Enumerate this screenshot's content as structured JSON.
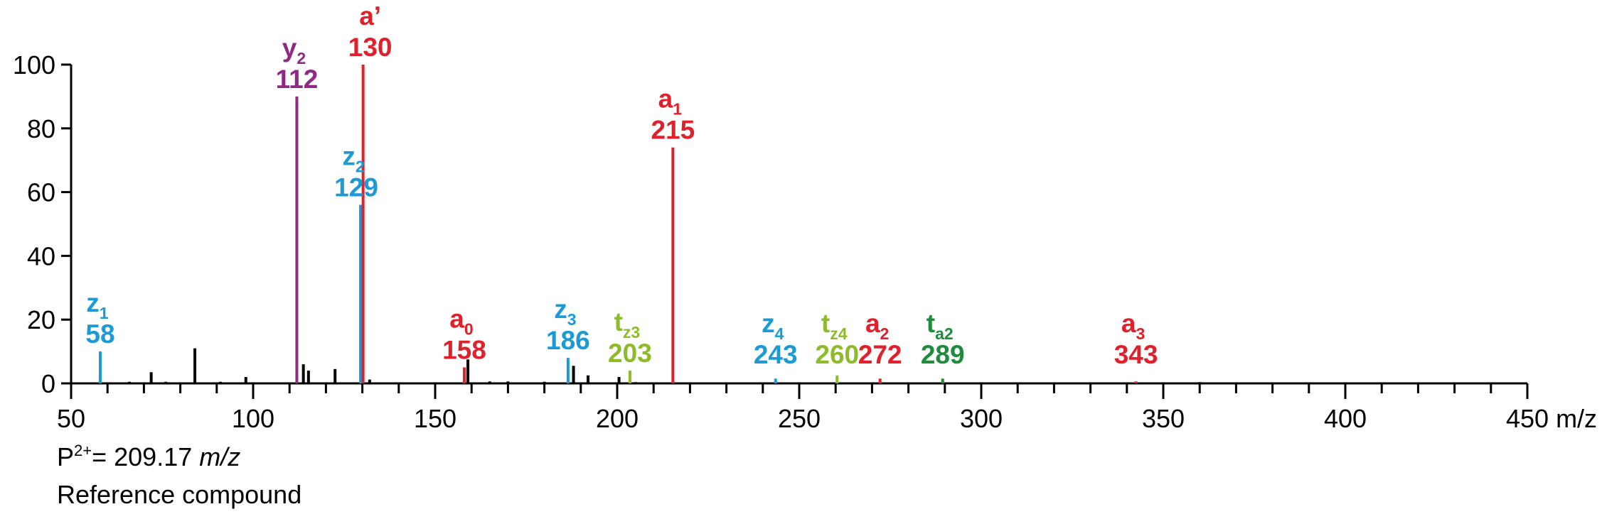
{
  "chart_data": {
    "type": "bar",
    "xlabel": "m/z",
    "ylabel": "",
    "xlim": [
      50,
      450
    ],
    "ylim": [
      0,
      100
    ],
    "x_ticks": [
      50,
      100,
      150,
      200,
      250,
      300,
      350,
      400,
      450
    ],
    "y_ticks": [
      0,
      20,
      40,
      60,
      80,
      100
    ],
    "grid": false,
    "colors": {
      "a": "#e0202a",
      "y": "#8e2a86",
      "z": "#1b9ad6",
      "tz": "#8dbb2a",
      "ta": "#1e8c3c",
      "other": "#000000"
    },
    "annotated_peaks": [
      {
        "ion": "z",
        "sub": "1",
        "mz_label": "58",
        "mz": 58,
        "intensity": 10,
        "color_key": "z"
      },
      {
        "ion": "y",
        "sub": "2",
        "mz_label": "112",
        "mz": 112,
        "intensity": 90,
        "color_key": "y"
      },
      {
        "ion": "z",
        "sub": "2",
        "mz_label": "129",
        "mz": 129.5,
        "intensity": 56,
        "color_key": "z"
      },
      {
        "ion": "a’",
        "sub": "",
        "mz_label": "130",
        "mz": 130.2,
        "intensity": 100,
        "color_key": "a"
      },
      {
        "ion": "a",
        "sub": "0",
        "mz_label": "158",
        "mz": 158,
        "intensity": 5,
        "color_key": "a"
      },
      {
        "ion": "z",
        "sub": "3",
        "mz_label": "186",
        "mz": 186.5,
        "intensity": 8,
        "color_key": "z"
      },
      {
        "ion": "t",
        "sub": "z3",
        "mz_label": "203",
        "mz": 203.5,
        "intensity": 4,
        "color_key": "tz"
      },
      {
        "ion": "a",
        "sub": "1",
        "mz_label": "215",
        "mz": 215.3,
        "intensity": 74,
        "color_key": "a"
      },
      {
        "ion": "z",
        "sub": "4",
        "mz_label": "243",
        "mz": 243.5,
        "intensity": 1.5,
        "color_key": "z"
      },
      {
        "ion": "t",
        "sub": "z4",
        "mz_label": "260",
        "mz": 260.4,
        "intensity": 2.5,
        "color_key": "tz"
      },
      {
        "ion": "a",
        "sub": "2",
        "mz_label": "272",
        "mz": 272.2,
        "intensity": 1.5,
        "color_key": "a"
      },
      {
        "ion": "t",
        "sub": "a2",
        "mz_label": "289",
        "mz": 289.4,
        "intensity": 1.5,
        "color_key": "ta"
      },
      {
        "ion": "a",
        "sub": "3",
        "mz_label": "343",
        "mz": 342.5,
        "intensity": 0.6,
        "color_key": "a"
      }
    ],
    "other_peaks": [
      {
        "mz": 66,
        "intensity": 0.5
      },
      {
        "mz": 72,
        "intensity": 3.5
      },
      {
        "mz": 76,
        "intensity": 0.5
      },
      {
        "mz": 84,
        "intensity": 11
      },
      {
        "mz": 91,
        "intensity": 0.5
      },
      {
        "mz": 98,
        "intensity": 2
      },
      {
        "mz": 113.8,
        "intensity": 6
      },
      {
        "mz": 115.2,
        "intensity": 4
      },
      {
        "mz": 122.5,
        "intensity": 4.5
      },
      {
        "mz": 132,
        "intensity": 1.2
      },
      {
        "mz": 159,
        "intensity": 7.5
      },
      {
        "mz": 165,
        "intensity": 0.6
      },
      {
        "mz": 170,
        "intensity": 0.6
      },
      {
        "mz": 180,
        "intensity": 0.5
      },
      {
        "mz": 188,
        "intensity": 5.5
      },
      {
        "mz": 192,
        "intensity": 2.5
      },
      {
        "mz": 200.5,
        "intensity": 2
      },
      {
        "mz": 205,
        "intensity": 0.4
      },
      {
        "mz": 360,
        "intensity": 0.4
      }
    ]
  },
  "footer": {
    "precursor_prefix": "P",
    "precursor_charge": "2+",
    "precursor_value": "= 209.17 ",
    "precursor_unit": "m/z",
    "caption": "Reference compound"
  }
}
